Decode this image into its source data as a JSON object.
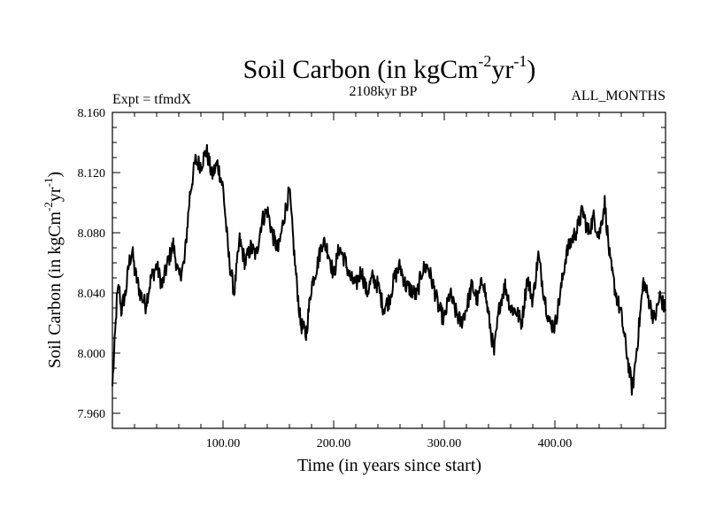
{
  "chart_data": {
    "type": "line",
    "title": "Soil Carbon (in kgCm",
    "title_exp1": "-2",
    "title_mid": "yr",
    "title_exp2": "-1",
    "title_end": ")",
    "experiment": "Expt = tfmdX",
    "subtitle": "2108kyr BP",
    "period": "ALL_MONTHS",
    "xlabel": "Time (in years since start)",
    "ylabel_parts": [
      "Soil Carbon (in kgCm",
      "-2",
      "yr",
      "-1",
      ")"
    ],
    "xlim": [
      0,
      500
    ],
    "ylim": [
      7.95,
      8.16
    ],
    "x_ticks": [
      100,
      200,
      300,
      400
    ],
    "x_tick_labels": [
      "100.00",
      "200.00",
      "300.00",
      "400.00"
    ],
    "y_ticks": [
      7.96,
      8.0,
      8.04,
      8.08,
      8.12,
      8.16
    ],
    "y_tick_labels": [
      "7.960",
      "8.000",
      "8.040",
      "8.080",
      "8.120",
      "8.160"
    ],
    "series": [
      {
        "name": "Soil Carbon",
        "x": [
          0,
          2,
          4,
          6,
          8,
          10,
          12,
          15,
          18,
          20,
          25,
          30,
          35,
          40,
          45,
          50,
          55,
          60,
          65,
          70,
          75,
          80,
          85,
          90,
          95,
          100,
          105,
          110,
          115,
          120,
          125,
          130,
          135,
          140,
          145,
          150,
          155,
          160,
          165,
          170,
          175,
          180,
          185,
          190,
          195,
          200,
          205,
          210,
          215,
          220,
          225,
          230,
          235,
          240,
          245,
          250,
          255,
          260,
          265,
          270,
          275,
          280,
          285,
          290,
          295,
          300,
          305,
          310,
          315,
          320,
          325,
          330,
          335,
          340,
          345,
          350,
          355,
          360,
          365,
          370,
          375,
          380,
          385,
          390,
          395,
          400,
          405,
          410,
          415,
          420,
          425,
          430,
          435,
          440,
          445,
          450,
          455,
          460,
          465,
          470,
          475,
          480,
          485,
          490,
          495,
          500
        ],
        "values": [
          7.978,
          8.005,
          8.035,
          8.045,
          8.028,
          8.035,
          8.04,
          8.06,
          8.068,
          8.055,
          8.04,
          8.032,
          8.05,
          8.058,
          8.045,
          8.06,
          8.072,
          8.05,
          8.06,
          8.105,
          8.128,
          8.125,
          8.135,
          8.118,
          8.126,
          8.11,
          8.065,
          8.04,
          8.075,
          8.06,
          8.07,
          8.065,
          8.088,
          8.095,
          8.078,
          8.068,
          8.09,
          8.108,
          8.06,
          8.02,
          8.012,
          8.045,
          8.058,
          8.075,
          8.068,
          8.052,
          8.07,
          8.062,
          8.05,
          8.045,
          8.055,
          8.04,
          8.05,
          8.045,
          8.03,
          8.035,
          8.05,
          8.058,
          8.045,
          8.042,
          8.038,
          8.055,
          8.058,
          8.045,
          8.03,
          8.022,
          8.04,
          8.028,
          8.02,
          8.03,
          8.045,
          8.035,
          8.05,
          8.025,
          8.0,
          8.032,
          8.045,
          8.03,
          8.028,
          8.02,
          8.05,
          8.035,
          8.065,
          8.04,
          8.02,
          8.018,
          8.04,
          8.065,
          8.075,
          8.082,
          8.095,
          8.08,
          8.09,
          8.078,
          8.1,
          8.06,
          8.04,
          8.025,
          8.0,
          7.975,
          8.01,
          8.048,
          8.035,
          8.022,
          8.038,
          8.028
        ]
      }
    ]
  }
}
